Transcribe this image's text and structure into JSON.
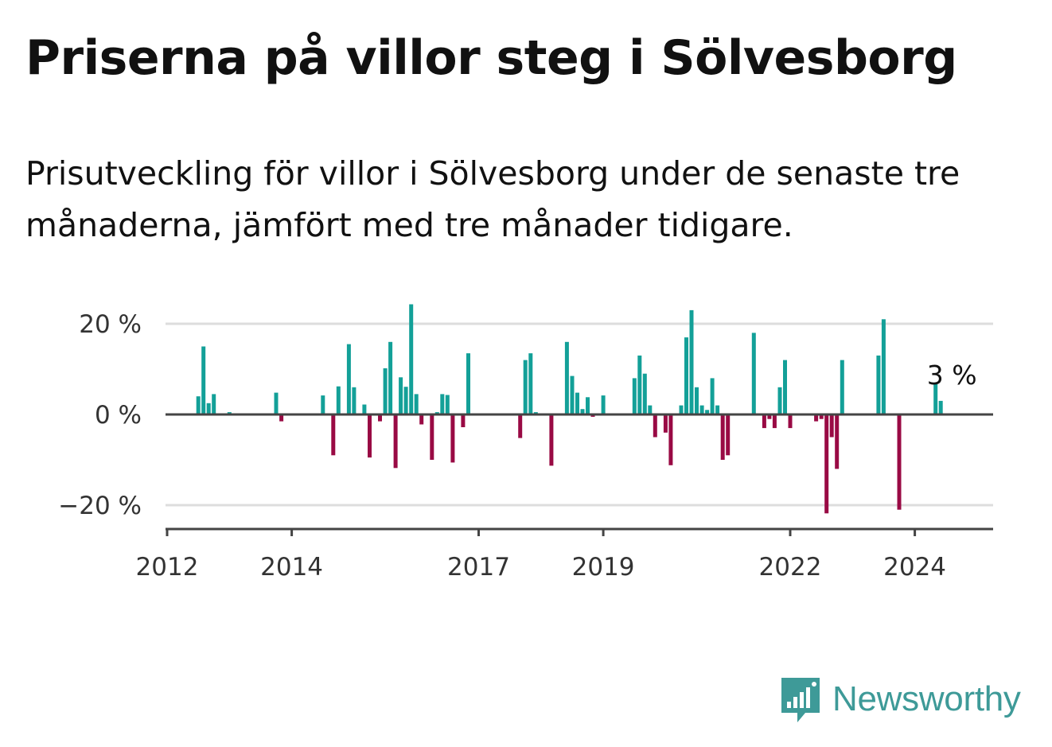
{
  "title": "Priserna på villor steg i Sölvesborg",
  "subtitle": "Prisutveckling för villor i Sölvesborg under de senaste tre månaderna, jämfört med tre månader tidigare.",
  "brand": "Newsworthy",
  "colors": {
    "positive": "#13a098",
    "negative": "#990a44",
    "grid": "#dddddd",
    "axis": "#444444",
    "brand": "#3e9a98"
  },
  "chart_data": {
    "type": "bar",
    "ylim": [
      -25,
      25
    ],
    "y_ticks": [
      {
        "value": 20,
        "label": "20 %"
      },
      {
        "value": 0,
        "label": "0 %"
      },
      {
        "value": -20,
        "label": "−20 %"
      }
    ],
    "x_ticks": [
      "2012",
      "2014",
      "2017",
      "2019",
      "2022",
      "2024"
    ],
    "annotation": {
      "text": "3 %",
      "x": "2024-06",
      "value": 3
    },
    "bars": [
      {
        "x": "2012-07",
        "value": 4
      },
      {
        "x": "2012-08",
        "value": 15
      },
      {
        "x": "2012-09",
        "value": 2.5
      },
      {
        "x": "2012-10",
        "value": 4.5
      },
      {
        "x": "2013-01",
        "value": 0.5
      },
      {
        "x": "2013-10",
        "value": 4.8
      },
      {
        "x": "2013-11",
        "value": -1.5
      },
      {
        "x": "2014-07",
        "value": 4.2
      },
      {
        "x": "2014-09",
        "value": -9
      },
      {
        "x": "2014-10",
        "value": 6.2
      },
      {
        "x": "2014-12",
        "value": 15.5
      },
      {
        "x": "2015-01",
        "value": 6
      },
      {
        "x": "2015-03",
        "value": 2.2
      },
      {
        "x": "2015-04",
        "value": -9.5
      },
      {
        "x": "2015-06",
        "value": -1.5
      },
      {
        "x": "2015-07",
        "value": 10.2
      },
      {
        "x": "2015-08",
        "value": 16
      },
      {
        "x": "2015-09",
        "value": -11.8
      },
      {
        "x": "2015-10",
        "value": 8.2
      },
      {
        "x": "2015-11",
        "value": 6.1
      },
      {
        "x": "2015-12",
        "value": 24.3
      },
      {
        "x": "2016-01",
        "value": 4.5
      },
      {
        "x": "2016-02",
        "value": -2.2
      },
      {
        "x": "2016-04",
        "value": -10
      },
      {
        "x": "2016-05",
        "value": 0.5
      },
      {
        "x": "2016-06",
        "value": 4.5
      },
      {
        "x": "2016-07",
        "value": 4.3
      },
      {
        "x": "2016-08",
        "value": -10.6
      },
      {
        "x": "2016-10",
        "value": -2.8
      },
      {
        "x": "2016-11",
        "value": 13.5
      },
      {
        "x": "2017-09",
        "value": -5.2
      },
      {
        "x": "2017-10",
        "value": 12
      },
      {
        "x": "2017-11",
        "value": 13.5
      },
      {
        "x": "2017-12",
        "value": 0.5
      },
      {
        "x": "2018-03",
        "value": -11.3
      },
      {
        "x": "2018-06",
        "value": 16
      },
      {
        "x": "2018-07",
        "value": 8.5
      },
      {
        "x": "2018-08",
        "value": 4.8
      },
      {
        "x": "2018-09",
        "value": 1.2
      },
      {
        "x": "2018-10",
        "value": 3.8
      },
      {
        "x": "2018-11",
        "value": -0.5
      },
      {
        "x": "2019-01",
        "value": 4.2
      },
      {
        "x": "2019-07",
        "value": 8
      },
      {
        "x": "2019-08",
        "value": 13
      },
      {
        "x": "2019-09",
        "value": 9
      },
      {
        "x": "2019-10",
        "value": 2
      },
      {
        "x": "2019-11",
        "value": -5
      },
      {
        "x": "2020-01",
        "value": -4
      },
      {
        "x": "2020-02",
        "value": -11.2
      },
      {
        "x": "2020-04",
        "value": 2
      },
      {
        "x": "2020-05",
        "value": 17
      },
      {
        "x": "2020-06",
        "value": 23
      },
      {
        "x": "2020-07",
        "value": 6
      },
      {
        "x": "2020-08",
        "value": 2
      },
      {
        "x": "2020-09",
        "value": 1
      },
      {
        "x": "2020-10",
        "value": 8
      },
      {
        "x": "2020-11",
        "value": 2
      },
      {
        "x": "2020-12",
        "value": -10
      },
      {
        "x": "2021-01",
        "value": -9
      },
      {
        "x": "2021-06",
        "value": 18
      },
      {
        "x": "2021-08",
        "value": -3
      },
      {
        "x": "2021-09",
        "value": -1
      },
      {
        "x": "2021-10",
        "value": -3
      },
      {
        "x": "2021-11",
        "value": 6
      },
      {
        "x": "2021-12",
        "value": 12
      },
      {
        "x": "2022-01",
        "value": -3
      },
      {
        "x": "2022-06",
        "value": -1.5
      },
      {
        "x": "2022-07",
        "value": -1
      },
      {
        "x": "2022-08",
        "value": -21.8
      },
      {
        "x": "2022-09",
        "value": -5
      },
      {
        "x": "2022-10",
        "value": -12
      },
      {
        "x": "2022-11",
        "value": 12
      },
      {
        "x": "2023-06",
        "value": 13
      },
      {
        "x": "2023-07",
        "value": 21
      },
      {
        "x": "2023-10",
        "value": -21
      },
      {
        "x": "2024-05",
        "value": 7
      },
      {
        "x": "2024-06",
        "value": 3
      }
    ]
  }
}
